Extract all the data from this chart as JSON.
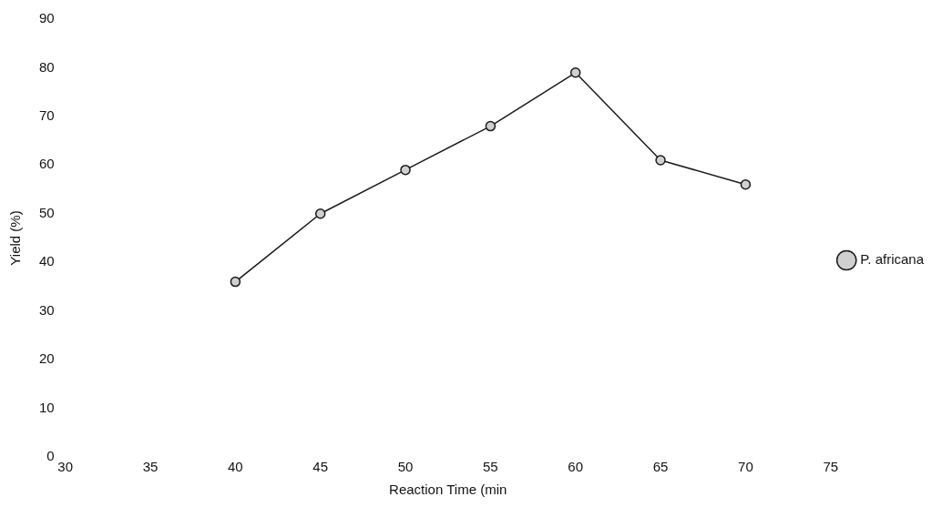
{
  "chart_data": {
    "type": "line",
    "xlabel": "Reaction Time (min",
    "ylabel": "Yield (%)",
    "xlim": [
      30,
      75
    ],
    "xticks": [
      30,
      35,
      40,
      45,
      50,
      55,
      60,
      65,
      70,
      75
    ],
    "ylim": [
      0,
      90
    ],
    "yticks": [
      0,
      10,
      20,
      30,
      40,
      50,
      60,
      70,
      80,
      90
    ],
    "x": [
      40,
      45,
      50,
      55,
      60,
      65,
      70
    ],
    "series": [
      {
        "name": "P. africana",
        "color": "#1a1a1a",
        "values": [
          36,
          50,
          59,
          68,
          79,
          61,
          56
        ]
      }
    ],
    "marker": "circle",
    "grid": false,
    "legend": "right"
  }
}
